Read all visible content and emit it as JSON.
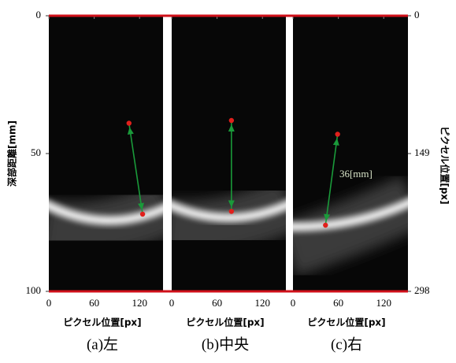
{
  "chart_data": [
    {
      "type": "line",
      "caption": "(a)左",
      "xlabel": "ピクセル位置[px]",
      "xlim": [
        0,
        151
      ],
      "xticks": [
        0,
        60,
        120
      ],
      "ylabel": "深部距離[mm]",
      "ylim": [
        0,
        100
      ],
      "yticks": [
        0,
        50,
        100
      ],
      "x": [
        106,
        124
      ],
      "values": [
        39,
        72
      ],
      "point_color": "#e0201c",
      "line_color": "#1a9a3a"
    },
    {
      "type": "line",
      "caption": "(b)中央",
      "xlabel": "ピクセル位置[px]",
      "xlim": [
        0,
        151
      ],
      "xticks": [
        0,
        60,
        120
      ],
      "x": [
        79,
        79
      ],
      "values": [
        38,
        71
      ],
      "point_color": "#e0201c",
      "line_color": "#1a9a3a"
    },
    {
      "type": "line",
      "caption": "(c)右",
      "xlabel": "ピクセル位置[px]",
      "xlim": [
        0,
        151
      ],
      "xticks": [
        0,
        60,
        120
      ],
      "y2label": "ピクセル位置[px]",
      "y2lim": [
        0,
        298
      ],
      "y2ticks": [
        0,
        149,
        298
      ],
      "x": [
        59,
        43
      ],
      "values": [
        43,
        76
      ],
      "point_color": "#e0201c",
      "line_color": "#1a9a3a",
      "annotation": "36[mm]"
    }
  ]
}
